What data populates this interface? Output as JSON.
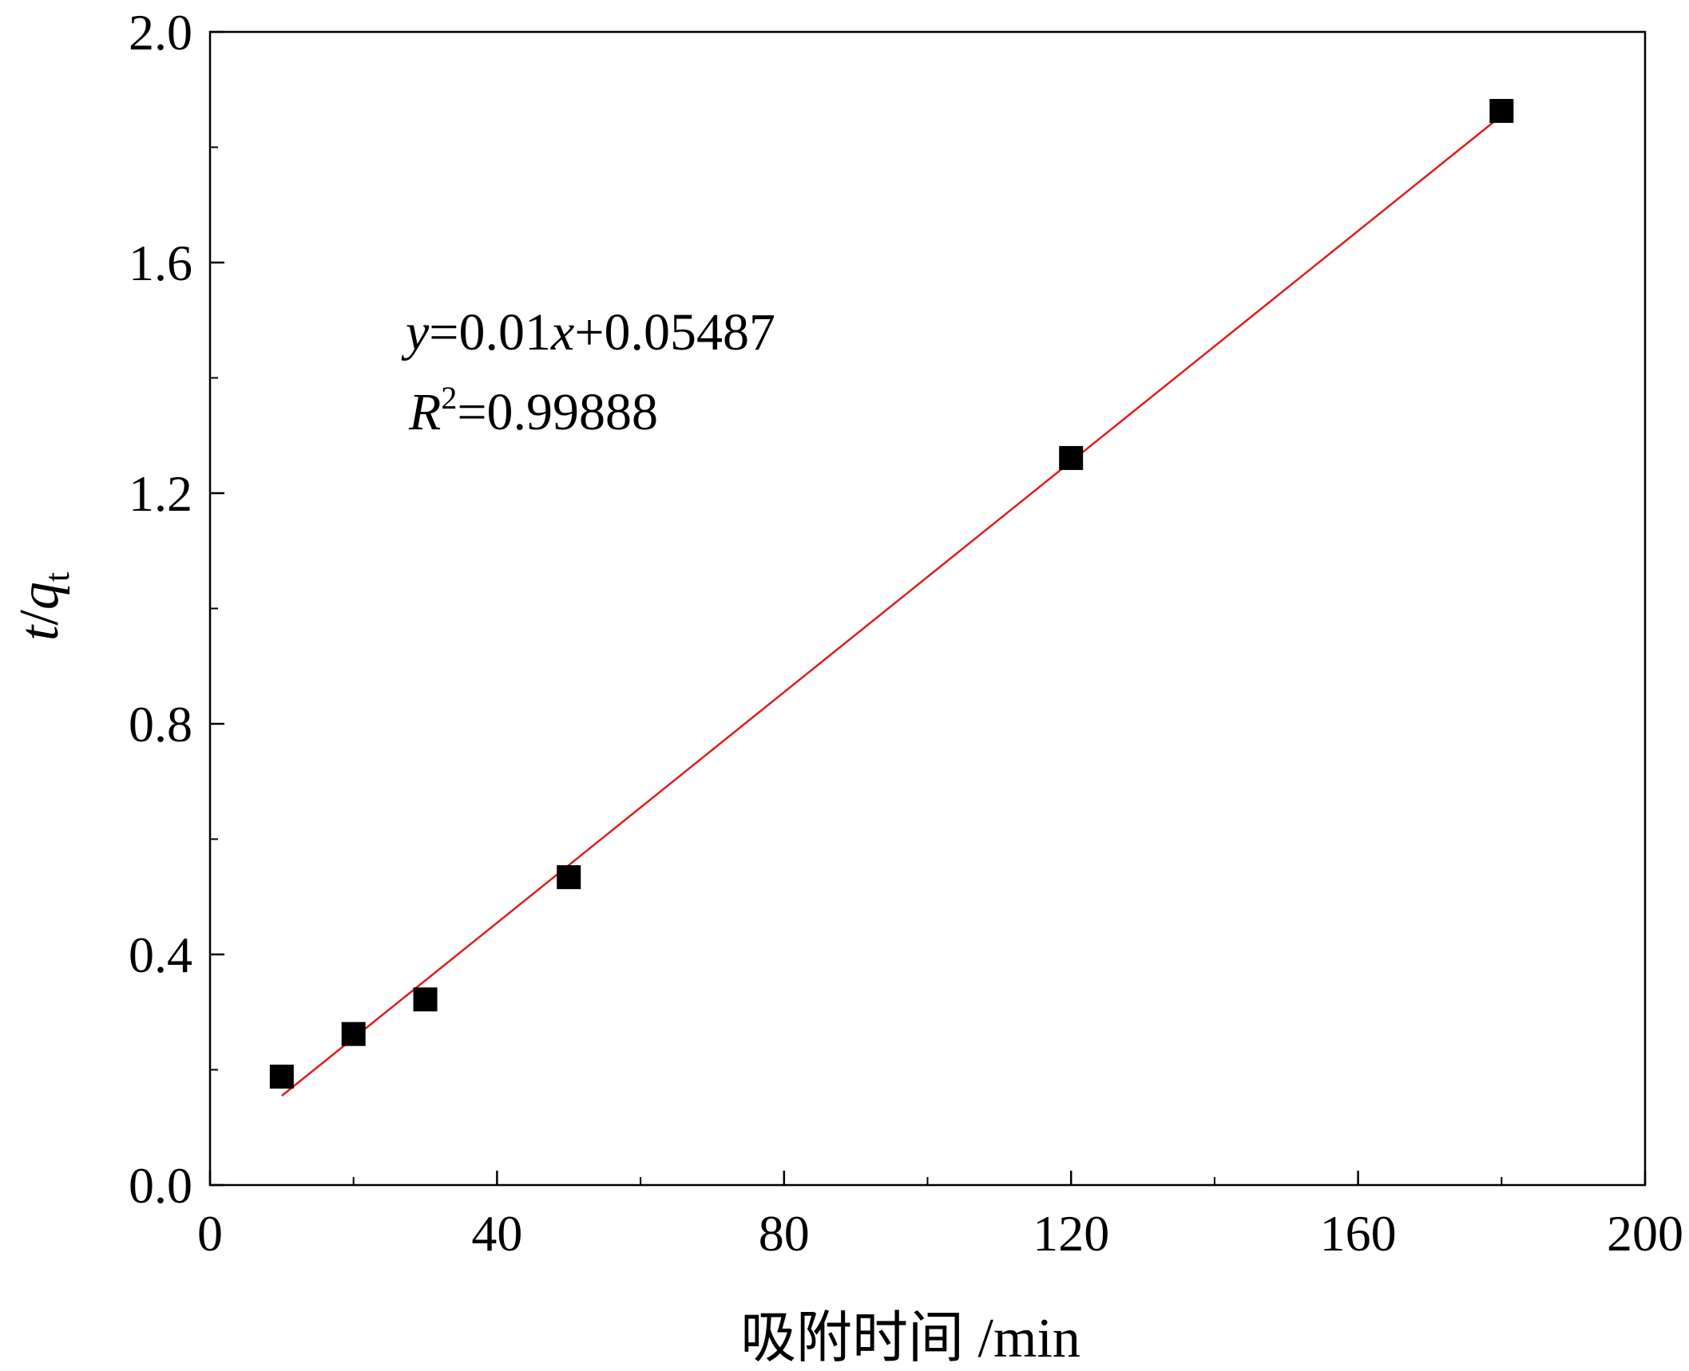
{
  "chart_data": {
    "type": "scatter",
    "x": [
      10,
      20,
      30,
      50,
      120,
      180
    ],
    "y": [
      0.188,
      0.262,
      0.322,
      0.534,
      1.261,
      1.863
    ],
    "fit_line": {
      "x": [
        10,
        180
      ],
      "y": [
        0.15487,
        1.85487
      ],
      "color": "#e31a1c"
    },
    "marker_shape": "square",
    "marker_color": "#000000",
    "xlabel_text": "吸附时间 /min",
    "ylabel_main": "t",
    "ylabel_sep": "/",
    "ylabel_var": "q",
    "ylabel_sub": "t",
    "xlim": [
      0,
      200
    ],
    "ylim": [
      0,
      2.0
    ],
    "xticks": [
      0,
      40,
      80,
      120,
      160,
      200
    ],
    "xtick_labels": [
      "0",
      "40",
      "80",
      "120",
      "160",
      "200"
    ],
    "yticks": [
      0.0,
      0.4,
      0.8,
      1.2,
      1.6,
      2.0
    ],
    "ytick_labels": [
      "0.0",
      "0.4",
      "0.8",
      "1.2",
      "1.6",
      "2.0"
    ],
    "x_minor_ticks": [
      20,
      60,
      100,
      140,
      180
    ],
    "y_minor_ticks": [
      0.2,
      0.6,
      1.0,
      1.4,
      1.8
    ],
    "grid": false,
    "legend": "none",
    "annotation": {
      "eq_y": "y",
      "eq_mid": "=0.01",
      "eq_x": "x",
      "eq_end": "+0.05487",
      "r_letter": "R",
      "r_exp": "2",
      "r_value": "=0.99888"
    }
  }
}
